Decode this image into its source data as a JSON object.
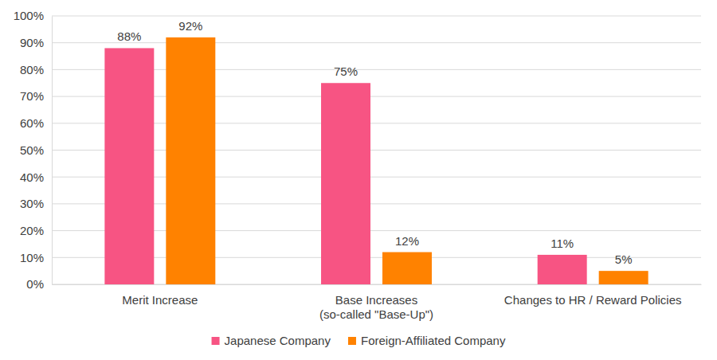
{
  "chart_data": {
    "type": "bar",
    "categories": [
      "Merit Increase",
      "Base Increases\n(so-called \"Base-Up\")",
      "Changes to HR / Reward Policies"
    ],
    "series": [
      {
        "name": "Japanese Company",
        "color": "#f75483",
        "values": [
          88,
          75,
          11
        ],
        "value_labels": [
          "88%",
          "75%",
          "11%"
        ]
      },
      {
        "name": "Foreign-Affiliated Company",
        "color": "#ff8200",
        "values": [
          92,
          12,
          5
        ],
        "value_labels": [
          "92%",
          "12%",
          "5%"
        ]
      }
    ],
    "ylim": [
      0,
      100
    ],
    "yticks": [
      {
        "value": 0,
        "label": "0%"
      },
      {
        "value": 10,
        "label": "10%"
      },
      {
        "value": 20,
        "label": "20%"
      },
      {
        "value": 30,
        "label": "30%"
      },
      {
        "value": 40,
        "label": "40%"
      },
      {
        "value": 50,
        "label": "50%"
      },
      {
        "value": 60,
        "label": "60%"
      },
      {
        "value": 70,
        "label": "70%"
      },
      {
        "value": 80,
        "label": "80%"
      },
      {
        "value": 90,
        "label": "90%"
      },
      {
        "value": 100,
        "label": "100%"
      }
    ],
    "grid": true,
    "data_labels": true,
    "legend": "bottom"
  }
}
